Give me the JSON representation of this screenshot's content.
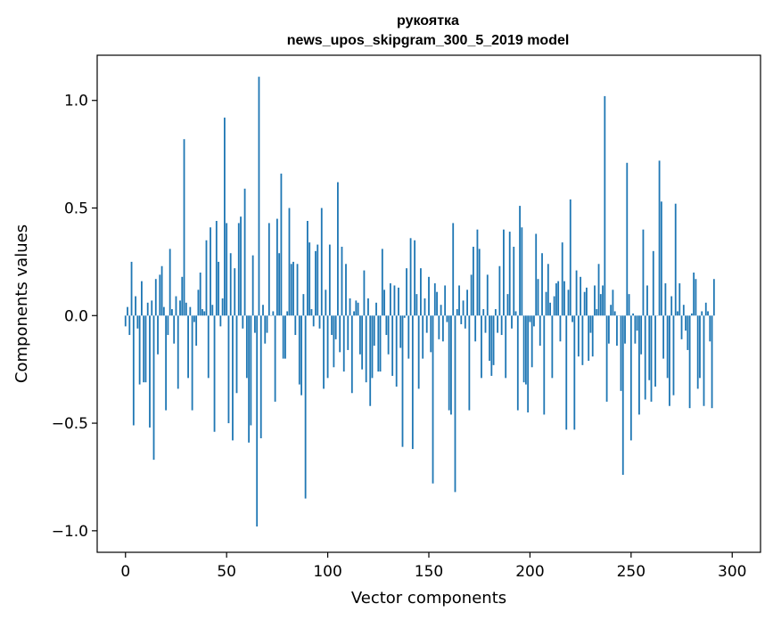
{
  "chart_data": {
    "type": "bar",
    "title_line1": "рукоятка",
    "title_line2": "news_upos_skipgram_300_5_2019 model",
    "xlabel": "Vector components",
    "ylabel": "Components values",
    "xlim": [
      -14,
      314
    ],
    "ylim": [
      -1.1,
      1.21
    ],
    "xticks": [
      {
        "value": 0,
        "label": "0"
      },
      {
        "value": 50,
        "label": "50"
      },
      {
        "value": 100,
        "label": "100"
      },
      {
        "value": 150,
        "label": "150"
      },
      {
        "value": 200,
        "label": "200"
      },
      {
        "value": 250,
        "label": "250"
      },
      {
        "value": 300,
        "label": "300"
      }
    ],
    "yticks": [
      {
        "value": -1.0,
        "label": "−1.0"
      },
      {
        "value": -0.5,
        "label": "−0.5"
      },
      {
        "value": 0.0,
        "label": "0.0"
      },
      {
        "value": 0.5,
        "label": "0.5"
      },
      {
        "value": 1.0,
        "label": "1.0"
      }
    ],
    "grid": false,
    "bar_color": "#1f77b4",
    "values": [
      -0.05,
      0.04,
      -0.09,
      0.25,
      -0.51,
      0.09,
      -0.06,
      -0.32,
      0.16,
      -0.31,
      -0.31,
      0.06,
      -0.52,
      0.07,
      -0.67,
      0.17,
      -0.18,
      0.19,
      0.23,
      0.04,
      -0.44,
      -0.09,
      0.31,
      0.03,
      -0.13,
      0.09,
      -0.34,
      0.07,
      0.18,
      0.82,
      0.06,
      -0.29,
      0.04,
      -0.44,
      -0.03,
      -0.14,
      0.12,
      0.2,
      0.03,
      0.02,
      0.35,
      -0.29,
      0.41,
      0.05,
      -0.54,
      0.44,
      0.25,
      -0.05,
      0.08,
      0.92,
      0.43,
      -0.5,
      0.29,
      -0.58,
      0.22,
      -0.36,
      0.43,
      0.46,
      -0.06,
      0.59,
      -0.29,
      -0.59,
      -0.51,
      0.28,
      -0.08,
      -0.98,
      1.11,
      -0.57,
      0.05,
      -0.13,
      -0.08,
      0.43,
      0.0,
      0.02,
      -0.4,
      0.45,
      0.29,
      0.66,
      -0.2,
      -0.2,
      0.02,
      0.5,
      0.24,
      0.25,
      -0.09,
      0.24,
      -0.32,
      -0.37,
      0.1,
      -0.85,
      0.44,
      0.34,
      0.03,
      -0.05,
      0.3,
      0.33,
      -0.06,
      0.5,
      -0.34,
      0.12,
      -0.29,
      0.33,
      -0.09,
      -0.24,
      -0.11,
      0.62,
      -0.17,
      0.32,
      -0.26,
      0.24,
      -0.16,
      0.08,
      -0.36,
      0.02,
      0.07,
      0.06,
      -0.18,
      -0.25,
      0.21,
      -0.31,
      0.08,
      -0.42,
      -0.29,
      -0.14,
      0.06,
      -0.26,
      -0.26,
      0.31,
      0.12,
      -0.09,
      -0.18,
      0.15,
      -0.28,
      0.14,
      -0.33,
      0.13,
      -0.15,
      -0.61,
      -0.01,
      0.22,
      -0.2,
      0.36,
      -0.62,
      0.35,
      0.1,
      -0.34,
      0.22,
      -0.2,
      0.08,
      -0.08,
      0.18,
      -0.17,
      -0.78,
      0.15,
      0.11,
      -0.11,
      0.05,
      -0.12,
      0.14,
      -0.03,
      -0.44,
      -0.46,
      0.43,
      -0.82,
      0.03,
      0.14,
      -0.04,
      0.07,
      -0.06,
      0.12,
      -0.44,
      0.19,
      0.32,
      -0.12,
      0.4,
      0.31,
      -0.29,
      0.03,
      -0.08,
      0.19,
      -0.21,
      -0.28,
      -0.23,
      0.03,
      -0.08,
      0.23,
      -0.09,
      0.4,
      -0.29,
      0.1,
      0.39,
      -0.06,
      0.32,
      0.02,
      -0.44,
      0.51,
      0.41,
      -0.31,
      -0.32,
      -0.45,
      -0.03,
      -0.24,
      -0.05,
      0.38,
      0.17,
      -0.14,
      0.29,
      -0.46,
      0.11,
      0.24,
      0.06,
      -0.29,
      0.09,
      0.15,
      0.16,
      -0.12,
      0.34,
      0.16,
      -0.53,
      0.12,
      0.54,
      -0.03,
      -0.53,
      0.21,
      -0.19,
      0.18,
      -0.23,
      0.11,
      0.13,
      -0.21,
      -0.08,
      -0.19,
      0.14,
      0.03,
      0.24,
      0.1,
      0.14,
      1.02,
      -0.4,
      -0.13,
      0.05,
      0.12,
      0.02,
      -0.14,
      0.0,
      -0.35,
      -0.74,
      -0.13,
      0.71,
      0.1,
      -0.58,
      0.01,
      -0.13,
      -0.07,
      -0.46,
      -0.18,
      0.4,
      -0.39,
      0.14,
      -0.3,
      -0.4,
      0.3,
      -0.33,
      0.0,
      0.72,
      0.53,
      -0.2,
      0.15,
      -0.29,
      -0.42,
      0.09,
      -0.37,
      0.52,
      0.02,
      0.15,
      -0.11,
      0.05,
      -0.07,
      -0.16,
      -0.43,
      0.01,
      0.2,
      0.17,
      -0.34,
      -0.29,
      0.02,
      -0.42,
      0.06,
      0.02,
      -0.12,
      -0.43,
      0.17
    ]
  }
}
